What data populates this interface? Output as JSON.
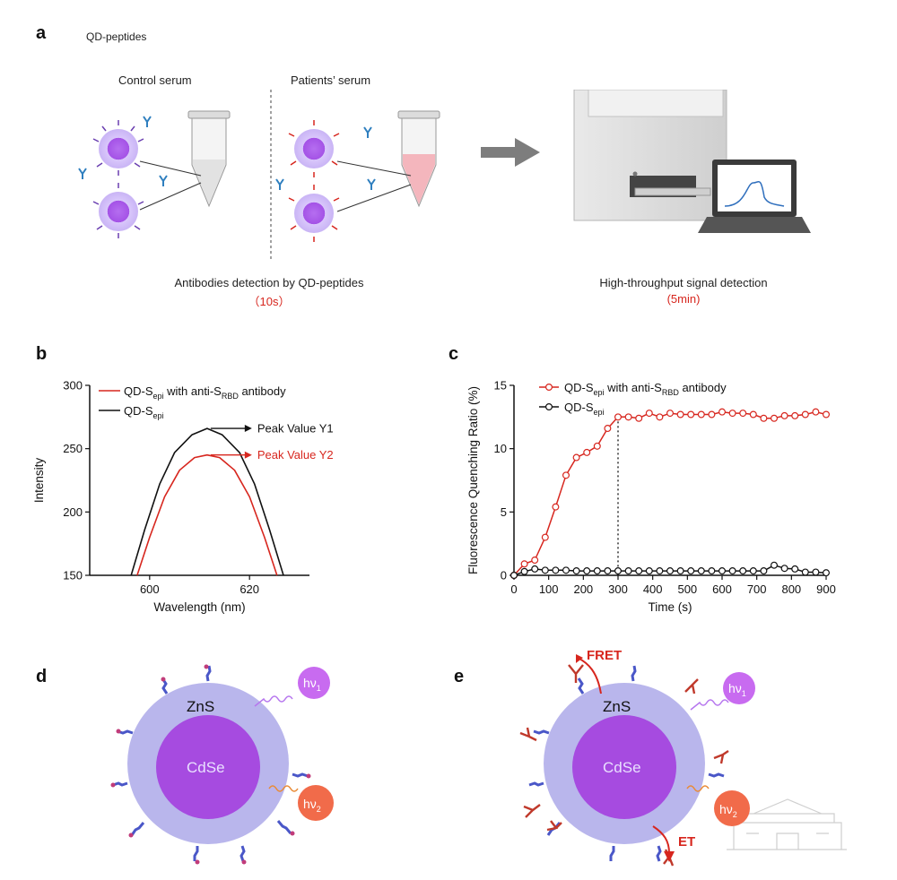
{
  "panels": {
    "a": "a",
    "b": "b",
    "c": "c",
    "d": "d",
    "e": "e"
  },
  "panel_a": {
    "header": "QD-peptides",
    "control_label": "Control serum",
    "patient_label": "Patients’ serum",
    "caption_left": "Antibodies detection by QD-peptides",
    "time_left": "（10s）",
    "caption_right": "High-throughput signal detection",
    "time_right": "(5min)"
  },
  "panel_d": {
    "shell": "ZnS",
    "core": "CdSe",
    "hv1": "hν",
    "hv1_sub": "1",
    "hv2": "hν",
    "hv2_sub": "2"
  },
  "panel_e": {
    "shell": "ZnS",
    "core": "CdSe",
    "hv1": "hν",
    "hv1_sub": "1",
    "hv2": "hν",
    "hv2_sub": "2",
    "fret": "FRET",
    "et": "ET"
  },
  "colors": {
    "red": "#d7261e",
    "black": "#111111",
    "shell": "#b9b6ec",
    "core": "#a64be0",
    "hv1": "#c86bf0",
    "hv2": "#f16b4a"
  },
  "chart_data": [
    {
      "type": "line",
      "panel": "b",
      "xlabel": "Wavelength (nm)",
      "ylabel": "Intensity",
      "xlim": [
        588,
        632
      ],
      "ylim": [
        150,
        300
      ],
      "xticks": [
        600,
        620
      ],
      "yticks": [
        150,
        200,
        250,
        300
      ],
      "legend": "top-left",
      "series": [
        {
          "name_main": "QD-S",
          "name_sub": "epi",
          "name_tail": " with anti-S",
          "name_sub2": "RBD",
          "name_end": " antibody",
          "color": "#d7261e",
          "x": [
            597.5,
            600,
            603,
            606,
            609,
            611.5,
            614,
            617,
            620,
            623,
            625.5
          ],
          "y": [
            150,
            180,
            212,
            233,
            243,
            245,
            243,
            233,
            212,
            180,
            150
          ]
        },
        {
          "name_main": "QD-S",
          "name_sub": "epi",
          "name_tail": "",
          "name_sub2": "",
          "name_end": "",
          "color": "#111111",
          "x": [
            596.3,
            599,
            602,
            605,
            608.5,
            611.5,
            614.5,
            618,
            621,
            624,
            626.8
          ],
          "y": [
            150,
            186,
            222,
            247,
            261,
            266,
            261,
            247,
            222,
            186,
            150
          ]
        }
      ],
      "annotations": [
        {
          "text": "Peak Value Y1",
          "color": "#111111"
        },
        {
          "text": "Peak Value Y2",
          "color": "#d7261e"
        }
      ]
    },
    {
      "type": "line",
      "panel": "c",
      "xlabel": "Time (s)",
      "ylabel": "Fluorescence Quenching Ratio (%)",
      "xlim": [
        0,
        900
      ],
      "ylim": [
        0,
        15
      ],
      "xticks": [
        0,
        100,
        200,
        300,
        400,
        500,
        600,
        700,
        800,
        900
      ],
      "yticks": [
        0,
        5,
        10,
        15
      ],
      "legend": "top",
      "vline_x": 300,
      "series": [
        {
          "name_main": "QD-S",
          "name_sub": "epi",
          "name_tail": " with anti-S",
          "name_sub2": "RBD",
          "name_end": " antibody",
          "color": "#d7261e",
          "x": [
            0,
            30,
            60,
            90,
            120,
            150,
            180,
            210,
            240,
            270,
            300,
            330,
            360,
            390,
            420,
            450,
            480,
            510,
            540,
            570,
            600,
            630,
            660,
            690,
            720,
            750,
            780,
            810,
            840,
            870,
            900
          ],
          "y": [
            0,
            0.9,
            1.2,
            3.0,
            5.4,
            7.9,
            9.3,
            9.7,
            10.2,
            11.6,
            12.5,
            12.5,
            12.4,
            12.8,
            12.5,
            12.8,
            12.7,
            12.7,
            12.7,
            12.7,
            12.9,
            12.8,
            12.8,
            12.7,
            12.4,
            12.4,
            12.6,
            12.6,
            12.7,
            12.9,
            12.7
          ]
        },
        {
          "name_main": "QD-S",
          "name_sub": "epi",
          "name_tail": "",
          "name_sub2": "",
          "name_end": "",
          "color": "#111111",
          "x": [
            0,
            30,
            60,
            90,
            120,
            150,
            180,
            210,
            240,
            270,
            300,
            330,
            360,
            390,
            420,
            450,
            480,
            510,
            540,
            570,
            600,
            630,
            660,
            690,
            720,
            750,
            780,
            810,
            840,
            870,
            900
          ],
          "y": [
            0,
            0.3,
            0.5,
            0.4,
            0.4,
            0.4,
            0.35,
            0.35,
            0.35,
            0.35,
            0.35,
            0.35,
            0.35,
            0.35,
            0.35,
            0.35,
            0.35,
            0.35,
            0.35,
            0.35,
            0.35,
            0.35,
            0.35,
            0.35,
            0.35,
            0.8,
            0.55,
            0.5,
            0.25,
            0.25,
            0.2
          ]
        }
      ]
    }
  ]
}
